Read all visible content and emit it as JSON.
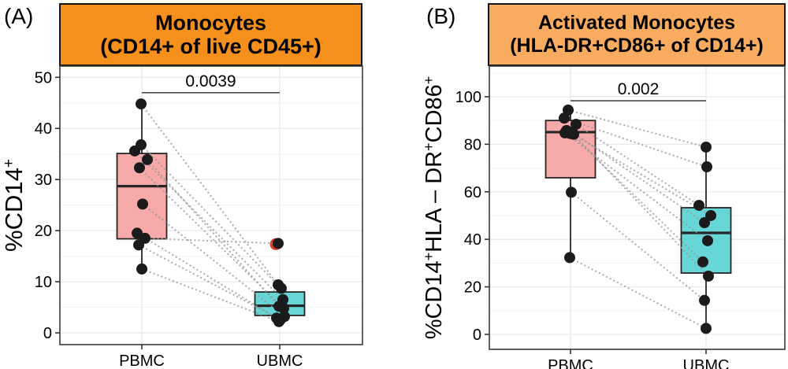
{
  "figure": {
    "background": "#FFFFFF"
  },
  "chart_data": [
    {
      "type": "boxplot",
      "panel_label": "(A)",
      "title_lines": [
        "Monocytes",
        "(CD14+ of live CD45+)"
      ],
      "header_color": "#F5901D",
      "ylabel_rich": [
        {
          "t": "%CD14"
        },
        {
          "t": "+",
          "sup": true
        }
      ],
      "categories": [
        "PBMC",
        "UBMC"
      ],
      "yticks": [
        0,
        10,
        20,
        30,
        40,
        50
      ],
      "yticks_minor": [
        5,
        15,
        25,
        35,
        45
      ],
      "ylim": [
        -2.3,
        52.2
      ],
      "grid": true,
      "significance": {
        "label": "0.0039",
        "y": 47.0
      },
      "outlier_color": "#E23B26",
      "groups": [
        {
          "name": "PBMC",
          "fill": "#F8A9A9",
          "box": {
            "q1": 18.4,
            "median": 28.7,
            "q3": 35.1,
            "whisker_low": 12.5,
            "whisker_high": 44.8
          },
          "points": [
            {
              "v": 44.8,
              "dx": -1
            },
            {
              "v": 36.8,
              "dx": -1
            },
            {
              "v": 35.6,
              "dx": -9
            },
            {
              "v": 33.9,
              "dx": 7
            },
            {
              "v": 32.3,
              "dx": -3
            },
            {
              "v": 25.2,
              "dx": 1
            },
            {
              "v": 19.5,
              "dx": -6
            },
            {
              "v": 18.5,
              "dx": 4
            },
            {
              "v": 17.2,
              "dx": -4
            },
            {
              "v": 12.5,
              "dx": 0
            }
          ]
        },
        {
          "name": "UBMC",
          "fill": "#66D6D6",
          "box": {
            "q1": 3.4,
            "median": 5.3,
            "q3": 8.0,
            "whisker_low": 2.2,
            "whisker_high": 9.4
          },
          "points": [
            {
              "v": 17.5,
              "dx": -2,
              "outlier": true
            },
            {
              "v": 9.4,
              "dx": -2
            },
            {
              "v": 8.7,
              "dx": 2
            },
            {
              "v": 6.5,
              "dx": 4
            },
            {
              "v": 5.2,
              "dx": -1
            },
            {
              "v": 4.8,
              "dx": 5
            },
            {
              "v": 3.2,
              "dx": 6
            },
            {
              "v": 2.9,
              "dx": -4
            },
            {
              "v": 2.6,
              "dx": 1
            },
            {
              "v": 2.2,
              "dx": -1
            }
          ]
        }
      ],
      "pairs": [
        [
          0,
          1
        ],
        [
          1,
          2
        ],
        [
          2,
          3
        ],
        [
          3,
          4
        ],
        [
          4,
          5
        ],
        [
          5,
          6
        ],
        [
          6,
          7
        ],
        [
          7,
          0
        ],
        [
          8,
          8
        ],
        [
          9,
          9
        ]
      ]
    },
    {
      "type": "boxplot",
      "panel_label": "(B)",
      "title_lines": [
        "Activated Monocytes",
        "(HLA-DR+CD86+ of CD14+)"
      ],
      "header_color": "#F9AC5F",
      "ylabel_rich": [
        {
          "t": "%CD14"
        },
        {
          "t": "+",
          "sup": true
        },
        {
          "t": "HLA – DR"
        },
        {
          "t": "+",
          "sup": true
        },
        {
          "t": "CD86"
        },
        {
          "t": "+",
          "sup": true
        }
      ],
      "categories": [
        "PBMC",
        "UBMC"
      ],
      "yticks": [
        0,
        20,
        40,
        60,
        80,
        100
      ],
      "yticks_minor": [
        10,
        30,
        50,
        70,
        90,
        110
      ],
      "ylim": [
        -6.3,
        112.9
      ],
      "grid": true,
      "significance": {
        "label": "0.002",
        "y": 98.3
      },
      "outlier_color": "#E23B26",
      "groups": [
        {
          "name": "PBMC",
          "fill": "#F8A9A9",
          "box": {
            "q1": 65.9,
            "median": 85.1,
            "q3": 90.0,
            "whisker_low": 32.3,
            "whisker_high": 94.4
          },
          "points": [
            {
              "v": 94.4,
              "dx": -3
            },
            {
              "v": 91.0,
              "dx": -8
            },
            {
              "v": 88.4,
              "dx": 7
            },
            {
              "v": 85.8,
              "dx": -5
            },
            {
              "v": 85.2,
              "dx": 2
            },
            {
              "v": 84.8,
              "dx": -7
            },
            {
              "v": 84.5,
              "dx": 0
            },
            {
              "v": 84.2,
              "dx": 4
            },
            {
              "v": 59.8,
              "dx": 1
            },
            {
              "v": 32.3,
              "dx": -1
            }
          ]
        },
        {
          "name": "UBMC",
          "fill": "#66D6D6",
          "box": {
            "q1": 25.8,
            "median": 42.7,
            "q3": 53.3,
            "whisker_low": 2.5,
            "whisker_high": 78.8
          },
          "points": [
            {
              "v": 78.8,
              "dx": 0
            },
            {
              "v": 70.5,
              "dx": 1
            },
            {
              "v": 54.3,
              "dx": -9
            },
            {
              "v": 50.0,
              "dx": 6
            },
            {
              "v": 47.0,
              "dx": -2
            },
            {
              "v": 39.4,
              "dx": 2
            },
            {
              "v": 30.5,
              "dx": -4
            },
            {
              "v": 24.5,
              "dx": 3
            },
            {
              "v": 14.3,
              "dx": -2
            },
            {
              "v": 2.5,
              "dx": 0
            }
          ]
        }
      ],
      "pairs": [
        [
          0,
          0
        ],
        [
          1,
          1
        ],
        [
          2,
          2
        ],
        [
          3,
          3
        ],
        [
          4,
          4
        ],
        [
          5,
          5
        ],
        [
          6,
          6
        ],
        [
          7,
          7
        ],
        [
          8,
          8
        ],
        [
          9,
          9
        ]
      ]
    }
  ]
}
